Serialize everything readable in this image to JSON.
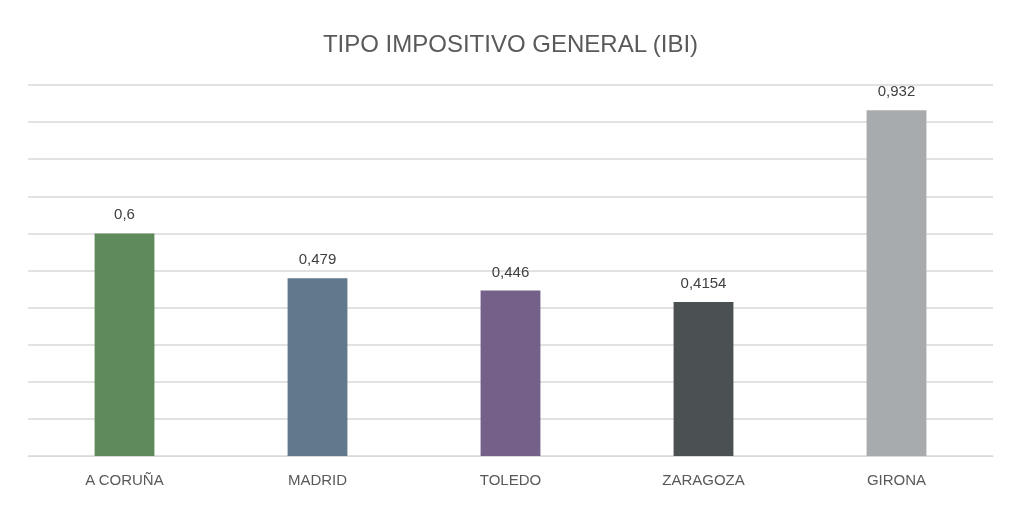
{
  "chart_data": {
    "type": "bar",
    "title": "TIPO IMPOSITIVO GENERAL (IBI)",
    "categories": [
      "A CORUÑA",
      "MADRID",
      "TOLEDO",
      "ZARAGOZA",
      "GIRONA"
    ],
    "values": [
      0.6,
      0.479,
      0.446,
      0.4154,
      0.932
    ],
    "value_labels": [
      "0,6",
      "0,479",
      "0,446",
      "0,4154",
      "0,932"
    ],
    "colors": [
      "#5f8a5b",
      "#60798b",
      "#75608a",
      "#4b5052",
      "#a8abad"
    ],
    "ylim": [
      0,
      1
    ],
    "yticks": [
      0,
      0.1,
      0.2,
      0.3,
      0.4,
      0.5,
      0.6,
      0.7,
      0.8,
      0.9,
      1
    ],
    "grid": "y",
    "tick_labels": "x"
  }
}
